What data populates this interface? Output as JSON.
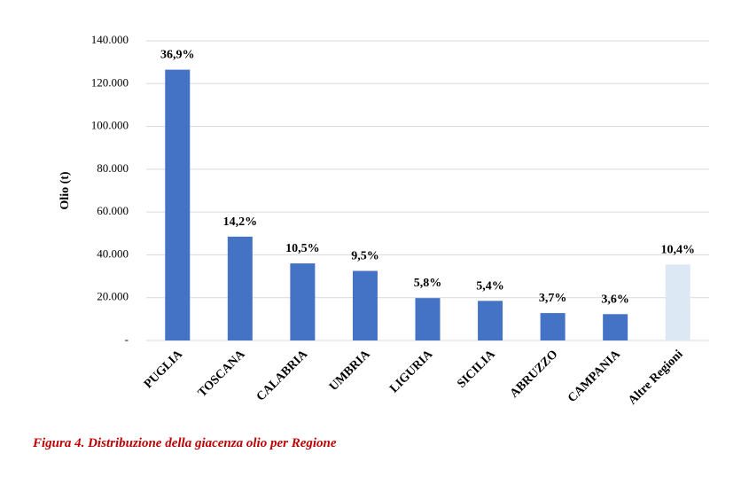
{
  "chart_data": {
    "type": "bar",
    "ylabel": "Olio (t)",
    "caption": "Figura 4. Distribuzione della giacenza olio per Regione",
    "categories": [
      "PUGLIA",
      "TOSCANA",
      "CALABRIA",
      "UMBRIA",
      "LIGURIA",
      "SICILIA",
      "ABRUZZO",
      "CAMPANIA",
      "Altre Regioni"
    ],
    "values": [
      126500,
      48500,
      36000,
      32500,
      19800,
      18500,
      12800,
      12300,
      35500
    ],
    "share_labels": [
      "36,9%",
      "14,2%",
      "10,5%",
      "9,5%",
      "5,8%",
      "5,4%",
      "3,7%",
      "3,6%",
      "10,4%"
    ],
    "colors": [
      "#4472c4",
      "#4472c4",
      "#4472c4",
      "#4472c4",
      "#4472c4",
      "#4472c4",
      "#4472c4",
      "#4472c4",
      "#dde8f5"
    ],
    "ylim": [
      0,
      140000
    ],
    "yticks": [
      {
        "value": 0,
        "label": "-"
      },
      {
        "value": 20000,
        "label": "20.000"
      },
      {
        "value": 40000,
        "label": "40.000"
      },
      {
        "value": 60000,
        "label": "60.000"
      },
      {
        "value": 80000,
        "label": "80.000"
      },
      {
        "value": 100000,
        "label": "100.000"
      },
      {
        "value": 120000,
        "label": "120.000"
      },
      {
        "value": 140000,
        "label": "140.000"
      }
    ],
    "grid": true
  }
}
